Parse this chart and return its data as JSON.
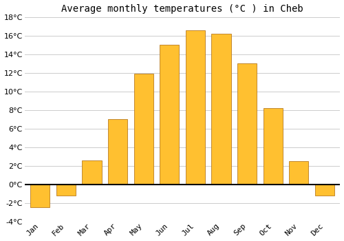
{
  "months": [
    "Jan",
    "Feb",
    "Mar",
    "Apr",
    "May",
    "Jun",
    "Jul",
    "Aug",
    "Sep",
    "Oct",
    "Nov",
    "Dec"
  ],
  "values": [
    -2.5,
    -1.2,
    2.6,
    7.0,
    11.9,
    15.0,
    16.6,
    16.2,
    13.0,
    8.2,
    2.5,
    -1.2
  ],
  "bar_color": "#FFC030",
  "bar_edge_color": "#B87A20",
  "title": "Average monthly temperatures (°C ) in Cheb",
  "ylim": [
    -4,
    18
  ],
  "yticks": [
    -4,
    -2,
    0,
    2,
    4,
    6,
    8,
    10,
    12,
    14,
    16,
    18
  ],
  "grid_color": "#cccccc",
  "background_color": "#ffffff",
  "title_fontsize": 10,
  "tick_fontsize": 8,
  "zero_line_color": "#000000",
  "bar_width": 0.75
}
